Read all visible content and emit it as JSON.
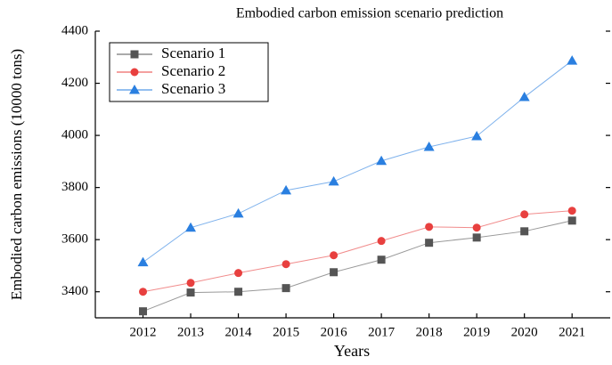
{
  "chart_data": {
    "type": "line",
    "title": "Embodied carbon emission scenario prediction",
    "xlabel": "Years",
    "ylabel": "Embodied carbon emissions (10000 tons)",
    "x": [
      2012,
      2013,
      2014,
      2015,
      2016,
      2017,
      2018,
      2019,
      2020,
      2021
    ],
    "series": [
      {
        "name": "Scenario 1",
        "color": "#555555",
        "marker": "square",
        "values": [
          3325,
          3397,
          3400,
          3414,
          3475,
          3523,
          3588,
          3608,
          3632,
          3673
        ]
      },
      {
        "name": "Scenario 2",
        "color": "#e8403f",
        "marker": "circle",
        "values": [
          3400,
          3434,
          3472,
          3506,
          3540,
          3595,
          3649,
          3646,
          3697,
          3711
        ]
      },
      {
        "name": "Scenario 3",
        "color": "#2a7fe0",
        "marker": "triangle",
        "values": [
          3513,
          3646,
          3700,
          3789,
          3823,
          3902,
          3956,
          3997,
          4147,
          4287
        ]
      }
    ],
    "xlim": [
      2011,
      2021.8
    ],
    "xticks": [
      2012,
      2013,
      2014,
      2015,
      2016,
      2017,
      2018,
      2019,
      2020,
      2021
    ],
    "ylim": [
      3300,
      4400
    ],
    "yticks": [
      3400,
      3600,
      3800,
      4000,
      4200,
      4400
    ],
    "legend": "upper-left"
  }
}
